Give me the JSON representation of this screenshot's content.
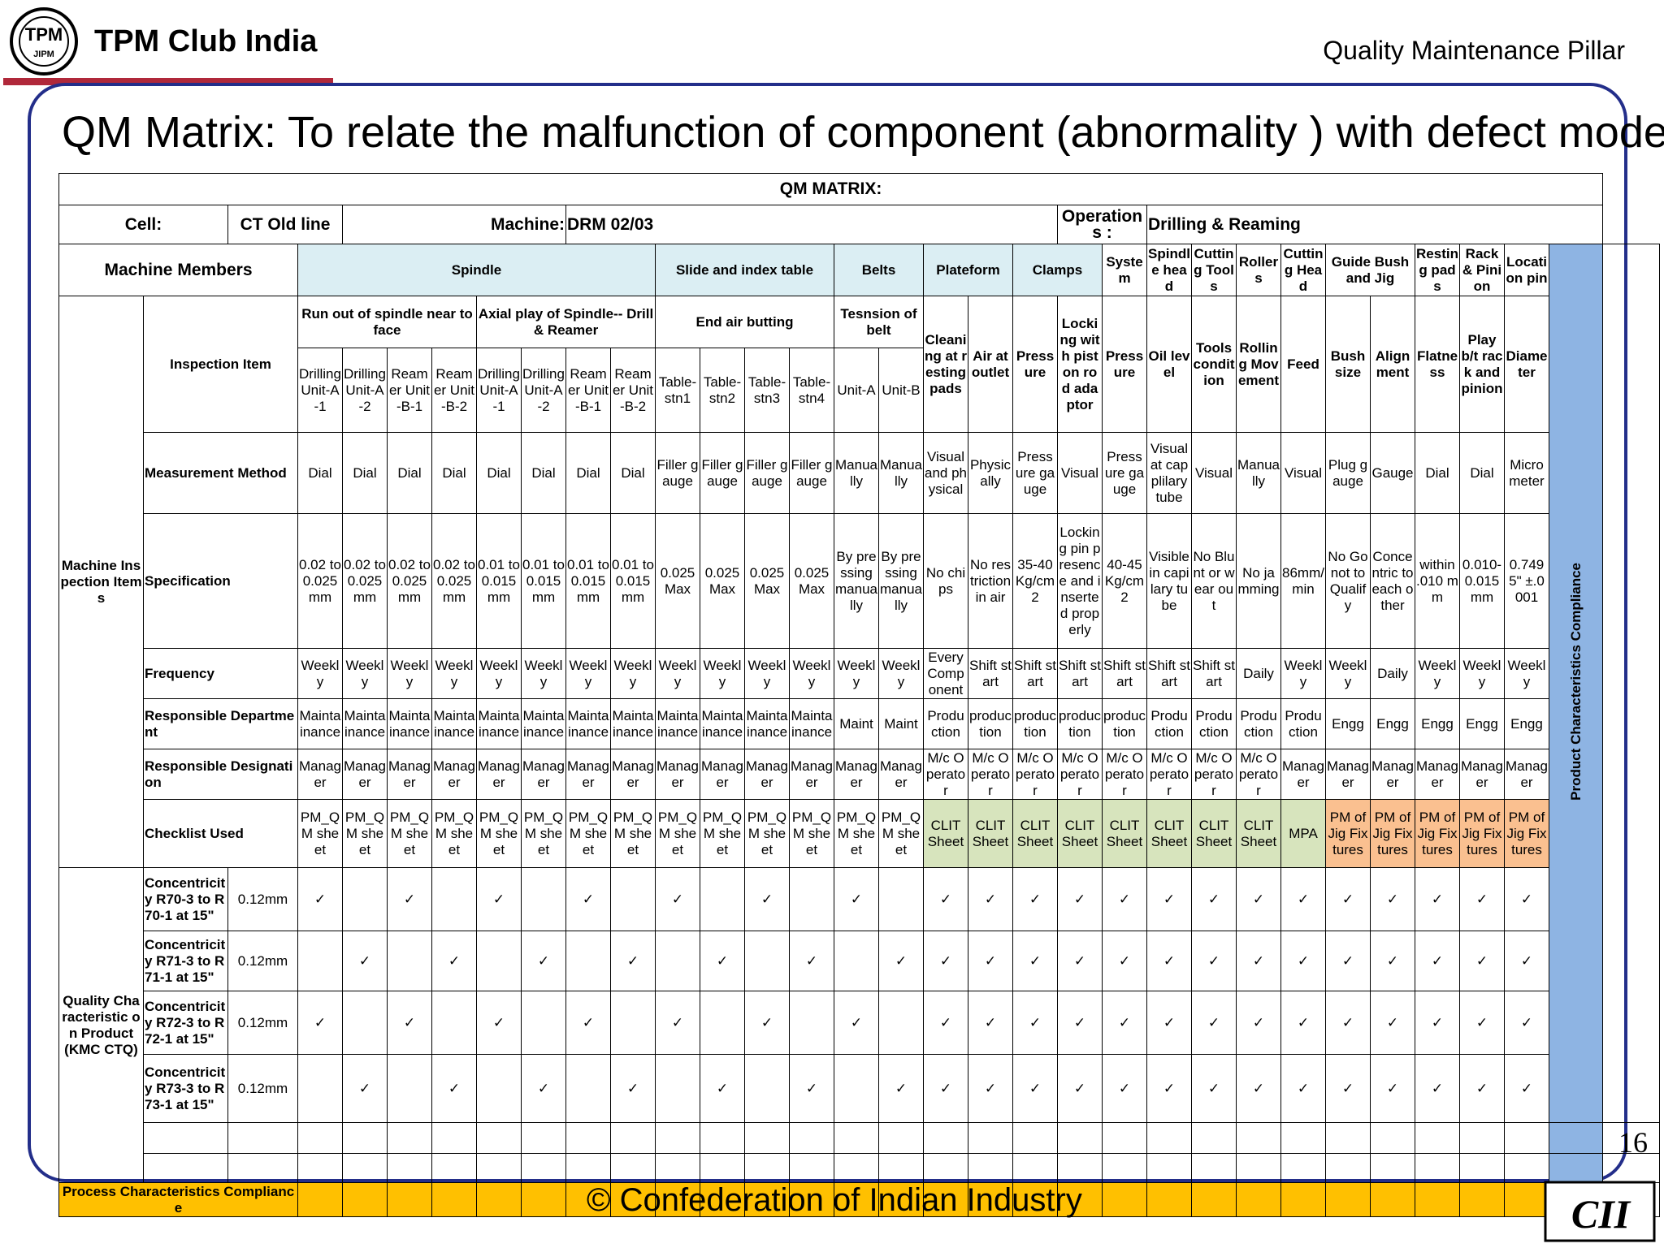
{
  "header": {
    "brand": "TPM Club India",
    "pillar": "Quality Maintenance Pillar",
    "logo_text": "TPM JIPM TPM CLUB INDIA"
  },
  "title": "QM Matrix: To relate the malfunction of component (abnormality ) with defect mode.",
  "footer": {
    "copyright": "© Confederation of Indian Industry",
    "page_number": "16",
    "cii_logo_text": "CII"
  },
  "matrix": {
    "heading": "QM MATRIX:",
    "cell_label": "Cell:",
    "cell_value": "CT Old line",
    "machine_label": "Machine:",
    "machine_value": "DRM 02/03",
    "operations_label": "Operations :",
    "operations_value": "Drilling & Reaming",
    "members_label": "Machine Members",
    "product_compliance": "Product Characteristics Compliance",
    "process_compliance": "Process Characteristics Compliance",
    "machine_inspection_items": "Machine Inspection Items",
    "quality_char": "Quality Characteristic on Product (KMC CTQ)",
    "row_labels": {
      "inspection": "Inspection Item",
      "measurement": "Measurement Method",
      "specification": "Specification",
      "frequency": "Frequency",
      "dept": "Responsible Department",
      "designation": "Responsible Designation",
      "checklist": "Checklist Used"
    },
    "groups": [
      "Spindle",
      "Slide and index table",
      "Belts",
      "Plateform",
      "Clamps",
      "System",
      "Spindle head",
      "Cutting Tools",
      "Rollers",
      "Cutting Head",
      "Guide Bush and Jig",
      "Resting pads",
      "Rack & Pinion",
      "Location pin"
    ],
    "subgroups": [
      "Run out of spindle near to face",
      "Axial play of Spindle-- Drill & Reamer",
      "End air butting",
      "Tesnsion of belt"
    ],
    "inspection_items": [
      "Drilling Unit-A -1",
      "Drilling Unit-A -2",
      "Reamer Unit-B-1",
      "Reamer Unit-B-2",
      "Drilling Unit-A -1",
      "Drilling Unit-A -2",
      "Reamer Unit-B-1",
      "Reamer Unit-B-2",
      "Table-stn1",
      "Table-stn2",
      "Table-stn3",
      "Table-stn4",
      "Unit-A",
      "Unit-B",
      "Cleaning at resting pads",
      "Air at outlet",
      "Pressure",
      "Locking with piston rod adaptor",
      "Pressure",
      "Oil level",
      "Tools condition",
      "Rolling Movement",
      "Feed",
      "Bush size",
      "Alignment",
      "Flatness",
      "Play b/t rack and pinion",
      "Diameter"
    ],
    "measurement": [
      "Dial",
      "Dial",
      "Dial",
      "Dial",
      "Dial",
      "Dial",
      "Dial",
      "Dial",
      "Filler gauge",
      "Filler gauge",
      "Filler gauge",
      "Filler gauge",
      "Manually",
      "Manually",
      "Visual and physical",
      "Physically",
      "Pressure gauge",
      "Visual",
      "Pressure gauge",
      "Visual at capplilary tube",
      "Visual",
      "Manually",
      "Visual",
      "Plug gauge",
      "Gauge",
      "Dial",
      "Dial",
      "Micrometer"
    ],
    "specification": [
      "0.02 to 0.025 mm",
      "0.02 to 0.025 mm",
      "0.02 to 0.025 mm",
      "0.02 to 0.025 mm",
      "0.01 to 0.015 mm",
      "0.01 to 0.015 mm",
      "0.01 to 0.015 mm",
      "0.01 to 0.015 mm",
      "0.025 Max",
      "0.025 Max",
      "0.025 Max",
      "0.025 Max",
      "By pressing manually",
      "By pressing manually",
      "No chips",
      "No restriction in air",
      "35-40 Kg/cm2",
      "Locking pin presence and inserted properly",
      "40-45Kg/cm2",
      "Visible in capilary tube",
      "No Blunt or wear out",
      "No jamming",
      "86mm/min",
      "No Go not to Qualify",
      "Concentric to each other",
      "within .010 mm",
      "0.010-0.015 mm",
      "0.7495\" ±.0001"
    ],
    "frequency": [
      "Weekly",
      "Weekly",
      "Weekly",
      "Weekly",
      "Weekly",
      "Weekly",
      "Weekly",
      "Weekly",
      "Weekly",
      "Weekly",
      "Weekly",
      "Weekly",
      "Weekly",
      "Weekly",
      "Every Component",
      "Shift start",
      "Shift start",
      "Shift start",
      "Shift start",
      "Shift start",
      "Shift start",
      "Daily",
      "Weekly",
      "Weekly",
      "Daily",
      "Weekly",
      "Weekly",
      "Weekly"
    ],
    "department": [
      "Maintainance",
      "Maintainance",
      "Maintainance",
      "Maintainance",
      "Maintainance",
      "Maintainance",
      "Maintainance",
      "Maintainance",
      "Maintainance",
      "Maintainance",
      "Maintainance",
      "Maintainance",
      "Maint",
      "Maint",
      "Production",
      "production",
      "production",
      "production",
      "production",
      "Production",
      "Production",
      "Production",
      "Production",
      "Engg",
      "Engg",
      "Engg",
      "Engg",
      "Engg"
    ],
    "designation": [
      "Manager",
      "Manager",
      "Manager",
      "Manager",
      "Manager",
      "Manager",
      "Manager",
      "Manager",
      "Manager",
      "Manager",
      "Manager",
      "Manager",
      "Manager",
      "Manager",
      "M/c Operator",
      "M/c Operator",
      "M/c Operator",
      "M/c Operator",
      "M/c Operator",
      "M/c Operator",
      "M/c Operator",
      "M/c Operator",
      "Manager",
      "Manager",
      "Manager",
      "Manager",
      "Manager",
      "Manager"
    ],
    "checklist": [
      "PM_QM sheet",
      "PM_QM sheet",
      "PM_QM sheet",
      "PM_QM sheet",
      "PM_QM sheet",
      "PM_QM sheet",
      "PM_QM sheet",
      "PM_QM sheet",
      "PM_QM sheet",
      "PM_QM sheet",
      "PM_QM sheet",
      "PM_QM sheet",
      "PM_QM sheet",
      "PM_QM sheet",
      "CLIT Sheet",
      "CLIT Sheet",
      "CLIT Sheet",
      "CLIT Sheet",
      "CLIT Sheet",
      "CLIT Sheet",
      "CLIT Sheet",
      "CLIT Sheet",
      "MPA",
      "PM of Jig Fixtures",
      "PM of Jig Fixtures",
      "PM of Jig Fixtures",
      "PM of Jig Fixtures",
      "PM of Jig Fixtures"
    ],
    "quality_rows": [
      {
        "label": "Concentricity R70-3 to R70-1 at 15\"",
        "tol": "0.12mm",
        "marks": "✓ ✓ ✓ ✓ ✓ ✓ ✓ ✓ ✓ ✓ ✓ ✓ ✓ ✓ ✓ ✓ ✓ ✓ ✓ ✓ ✓"
      },
      {
        "label": "Concentricity R71-3 to R71-1 at 15\"",
        "tol": "0.12mm",
        "marks": "✓ ✓ ✓ ✓ ✓ ✓ ✓ ✓ ✓ ✓ ✓ ✓ ✓ ✓ ✓ ✓ ✓ ✓ ✓ ✓ ✓"
      },
      {
        "label": "Concentricity R72-3 to R72-1 at 15\"",
        "tol": "0.12mm",
        "marks": "✓ ✓ ✓ ✓ ✓ ✓ ✓ ✓ ✓ ✓ ✓ ✓ ✓ ✓ ✓ ✓ ✓ ✓ ✓ ✓ ✓"
      },
      {
        "label": "Concentricity R73-3 to R73-1 at 15\"",
        "tol": "0.12mm",
        "marks": "✓ ✓ ✓ ✓ ✓ ✓ ✓ ✓ ✓ ✓ ✓ ✓ ✓ ✓ ✓ ✓ ✓ ✓ ✓ ✓ ✓"
      }
    ],
    "checkmark": "✓"
  }
}
